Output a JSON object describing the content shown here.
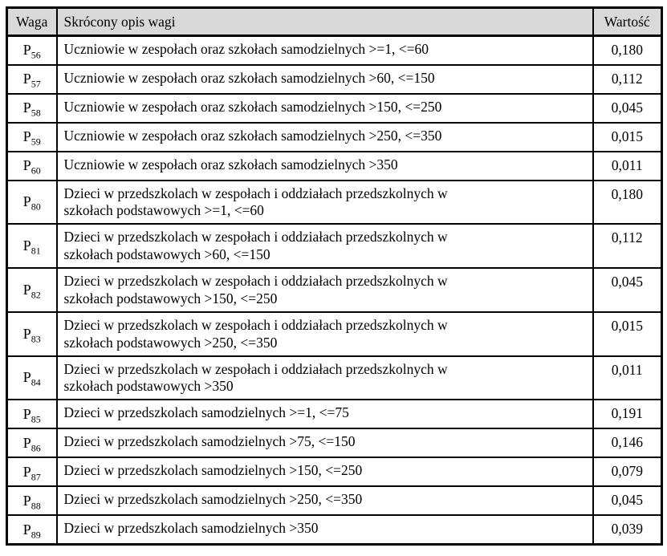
{
  "table": {
    "columns": [
      {
        "label": "Waga"
      },
      {
        "label": "Skrócony opis wagi"
      },
      {
        "label": "Wartość"
      }
    ],
    "rows": [
      {
        "weight_base": "P",
        "weight_sub": "56",
        "description_lines": [
          "Uczniowie w zespołach oraz szkołach samodzielnych >=1, <=60"
        ],
        "value": "0,180"
      },
      {
        "weight_base": "P",
        "weight_sub": "57",
        "description_lines": [
          "Uczniowie w zespołach oraz szkołach samodzielnych >60, <=150"
        ],
        "value": "0,112"
      },
      {
        "weight_base": "P",
        "weight_sub": "58",
        "description_lines": [
          "Uczniowie w zespołach oraz szkołach samodzielnych >150, <=250"
        ],
        "value": "0,045"
      },
      {
        "weight_base": "P",
        "weight_sub": "59",
        "description_lines": [
          "Uczniowie w zespołach oraz szkołach samodzielnych >250, <=350"
        ],
        "value": "0,015"
      },
      {
        "weight_base": "P",
        "weight_sub": "60",
        "description_lines": [
          "Uczniowie w zespołach oraz szkołach samodzielnych >350"
        ],
        "value": "0,011"
      },
      {
        "weight_base": "P",
        "weight_sub": "80",
        "description_lines": [
          "Dzieci w przedszkolach w zespołach i oddziałach przedszkolnych w",
          "szkołach podstawowych >=1, <=60"
        ],
        "value": "0,180"
      },
      {
        "weight_base": "P",
        "weight_sub": "81",
        "description_lines": [
          "Dzieci w przedszkolach w zespołach i oddziałach przedszkolnych w",
          "szkołach podstawowych >60, <=150"
        ],
        "value": "0,112"
      },
      {
        "weight_base": "P",
        "weight_sub": "82",
        "description_lines": [
          "Dzieci w przedszkolach w zespołach i oddziałach przedszkolnych w",
          "szkołach podstawowych >150, <=250"
        ],
        "value": "0,045"
      },
      {
        "weight_base": "P",
        "weight_sub": "83",
        "description_lines": [
          "Dzieci w przedszkolach w zespołach i oddziałach przedszkolnych w",
          "szkołach podstawowych >250, <=350"
        ],
        "value": "0,015"
      },
      {
        "weight_base": "P",
        "weight_sub": "84",
        "description_lines": [
          "Dzieci w przedszkolach w zespołach i oddziałach przedszkolnych w",
          "szkołach podstawowych >350"
        ],
        "value": "0,011"
      },
      {
        "weight_base": "P",
        "weight_sub": "85",
        "description_lines": [
          "Dzieci w przedszkolach samodzielnych >=1, <=75"
        ],
        "value": "0,191"
      },
      {
        "weight_base": "P",
        "weight_sub": "86",
        "description_lines": [
          "Dzieci w przedszkolach samodzielnych >75, <=150"
        ],
        "value": "0,146"
      },
      {
        "weight_base": "P",
        "weight_sub": "87",
        "description_lines": [
          "Dzieci w przedszkolach samodzielnych >150, <=250"
        ],
        "value": "0,079"
      },
      {
        "weight_base": "P",
        "weight_sub": "88",
        "description_lines": [
          "Dzieci w przedszkolach samodzielnych >250, <=350"
        ],
        "value": "0,045"
      },
      {
        "weight_base": "P",
        "weight_sub": "89",
        "description_lines": [
          "Dzieci w przedszkolach samodzielnych >350"
        ],
        "value": "0,039"
      }
    ]
  },
  "colors": {
    "header_bg": "#d9d9d9",
    "border": "#000000",
    "text": "#000000",
    "page_bg": "#ffffff"
  }
}
